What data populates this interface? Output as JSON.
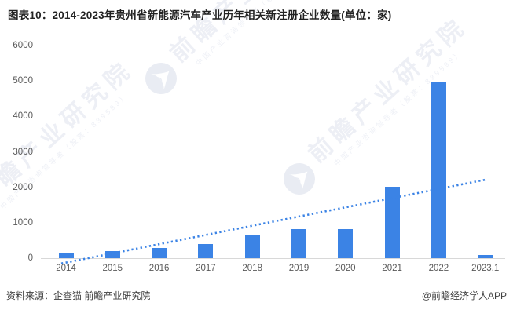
{
  "page": {
    "title": "图表10：2014-2023年贵州省新能源汽车产业历年相关新注册企业数量(单位：家)"
  },
  "footer": {
    "source": "资料来源：企查猫 前瞻产业研究院",
    "credit": "@前瞻经济学人APP"
  },
  "watermark": {
    "brand": "前瞻产业研究院",
    "tagline": "中国产业咨询领导者",
    "stock": "（股票：839599）"
  },
  "colors": {
    "bar": "#3b83e5",
    "trend": "#3b83e5",
    "axis_line": "#d8d8d8",
    "tick_label": "#595959",
    "title_text": "#222222",
    "footer_text": "#404040",
    "watermark": "#edeff5"
  },
  "chart_data": {
    "type": "bar",
    "title": "图表10：2014-2023年贵州省新能源汽车产业历年相关新注册企业数量(单位：家)",
    "unit": "家",
    "categories": [
      "2014",
      "2015",
      "2016",
      "2017",
      "2018",
      "2019",
      "2020",
      "2021",
      "2022",
      "2023.1"
    ],
    "values": [
      150,
      200,
      290,
      400,
      660,
      810,
      830,
      2010,
      4990,
      90
    ],
    "trendline": {
      "style": "dotted",
      "shape": "linear",
      "start_value": -150,
      "end_value": 2210
    },
    "xlabel": "",
    "ylabel": "",
    "ylim": [
      0,
      6000
    ],
    "ytick_step": 1000,
    "yticks": [
      0,
      1000,
      2000,
      3000,
      4000,
      5000,
      6000
    ],
    "grid": false,
    "legend": null
  }
}
